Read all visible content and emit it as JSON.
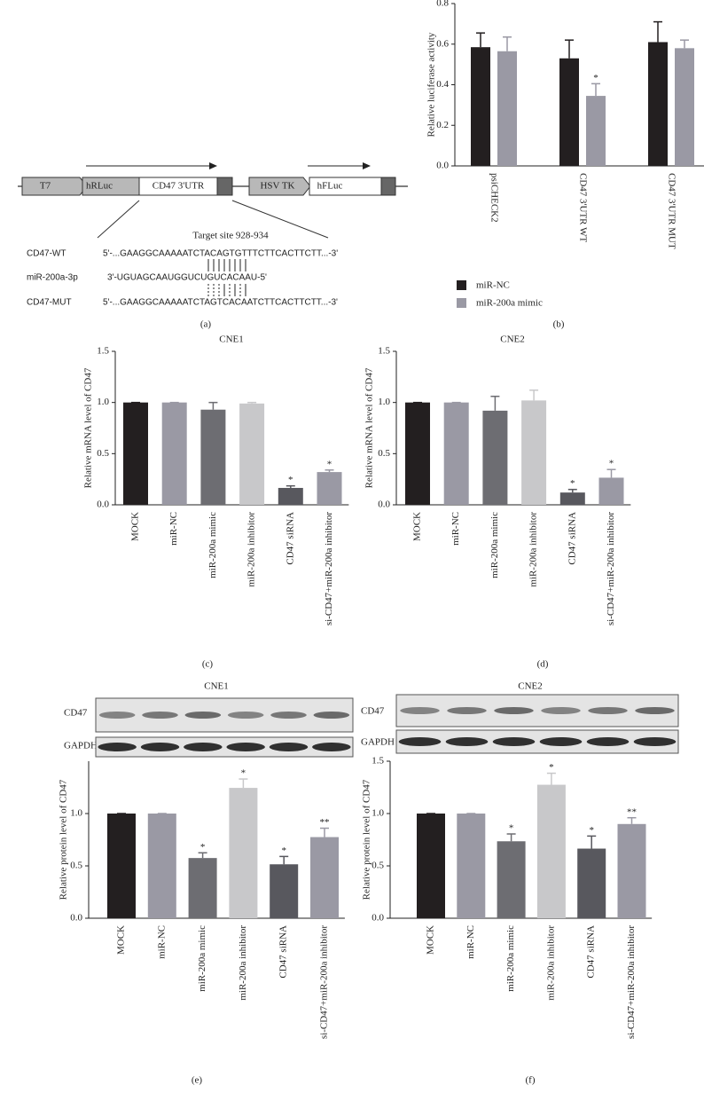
{
  "diagram": {
    "elements": [
      "T7",
      "hRLuc",
      "CD47 3'UTR",
      "HSV TK",
      "hFLuc"
    ],
    "target_site": "Target site 928-934",
    "rows": [
      {
        "label": "CD47-WT",
        "sequence": "5'-...GAAGGCAAAAATCTACAGTGTTTCTTCACTTCTT...-3'"
      },
      {
        "label": "miR-200a-3p",
        "sequence": "3'-UGUAGCAAUGGUCUGUCACAAU-5'"
      },
      {
        "label": "CD47-MUT",
        "sequence": "5'-...GAAGGCAAAAATCTAGTCACAATCTTCACTTCTT...-3'"
      }
    ]
  },
  "panel_labels": [
    "(a)",
    "(b)",
    "(c)",
    "(d)",
    "(e)",
    "(f)"
  ],
  "blots": [
    {
      "title": "CNE1",
      "lanes": [
        "CD47",
        "GAPDH"
      ]
    },
    {
      "title": "CNE2",
      "lanes": [
        "CD47",
        "GAPDH"
      ]
    }
  ],
  "chart_data": [
    {
      "type": "bar",
      "ylabel": "Relative luciferase activity",
      "categories": [
        "psiCHECK2",
        "CD47 3'UTR WT",
        "CD47 3'UTR MUT"
      ],
      "series": [
        {
          "name": "miR-NC",
          "color": "#231f20",
          "values": [
            0.585,
            0.53,
            0.61
          ],
          "errors": [
            0.07,
            0.09,
            0.1
          ]
        },
        {
          "name": "miR-200a mimic",
          "color": "#9a99a4",
          "values": [
            0.565,
            0.345,
            0.58
          ],
          "errors": [
            0.07,
            0.06,
            0.04
          ],
          "annotations": [
            {
              "index": 1,
              "text": "*"
            }
          ]
        }
      ],
      "ylim": [
        0,
        0.8
      ],
      "yticks": [
        {
          "value": 0,
          "label": "0.0"
        },
        0.2,
        0.4,
        0.6,
        0.8
      ]
    },
    {
      "type": "bar",
      "title": "CNE1",
      "ylabel": "Relative mRNA level of CD47",
      "categories": [
        "MOCK",
        "miR-NC",
        "miR-200a mimic",
        "miR-200a inhibitor",
        "CD47 siRNA",
        "si-CD47+miR-200a inhibitor"
      ],
      "values": [
        1.0,
        1.0,
        0.93,
        0.99,
        0.165,
        0.32
      ],
      "errors": [
        0,
        0,
        0.07,
        0.01,
        0.02,
        0.02
      ],
      "colors": [
        "#231f20",
        "#9a99a4",
        "#6d6d72",
        "#c8c8ca",
        "#58585e",
        "#9a99a4"
      ],
      "annotations": [
        {
          "index": 4,
          "text": "*"
        },
        {
          "index": 5,
          "text": "*"
        }
      ],
      "ylim": [
        0,
        1.5
      ],
      "yticks": [
        {
          "value": 0,
          "label": "0.0"
        },
        0.5,
        {
          "value": 1,
          "label": "1.0"
        },
        1.5
      ]
    },
    {
      "type": "bar",
      "title": "CNE2",
      "ylabel": "Relative mRNA level of CD47",
      "categories": [
        "MOCK",
        "miR-NC",
        "miR-200a mimic",
        "miR-200a inhibitor",
        "CD47 siRNA",
        "si-CD47+miR-200a inhibitor"
      ],
      "values": [
        1.0,
        1.0,
        0.92,
        1.02,
        0.12,
        0.265
      ],
      "errors": [
        0,
        0,
        0.14,
        0.1,
        0.03,
        0.08
      ],
      "colors": [
        "#231f20",
        "#9a99a4",
        "#6d6d72",
        "#c8c8ca",
        "#58585e",
        "#9a99a4"
      ],
      "annotations": [
        {
          "index": 4,
          "text": "*"
        },
        {
          "index": 5,
          "text": "*"
        }
      ],
      "ylim": [
        0,
        1.5
      ],
      "yticks": [
        {
          "value": 0,
          "label": "0.0"
        },
        0.5,
        {
          "value": 1,
          "label": "1.0"
        },
        1.5
      ]
    },
    {
      "type": "bar",
      "ylabel": "Relative protein level of CD47",
      "categories": [
        "MOCK",
        "miR-NC",
        "miR-200a mimic",
        "miR-200a inhibitor",
        "CD47 siRNA",
        "si-CD47+miR-200a inhibitor"
      ],
      "values": [
        1.0,
        1.0,
        0.575,
        1.245,
        0.515,
        0.775
      ],
      "errors": [
        0,
        0,
        0.05,
        0.085,
        0.075,
        0.085
      ],
      "colors": [
        "#231f20",
        "#9a99a4",
        "#6d6d72",
        "#c8c8ca",
        "#58585e",
        "#9a99a4"
      ],
      "annotations": [
        {
          "index": 2,
          "text": "*"
        },
        {
          "index": 3,
          "text": "*"
        },
        {
          "index": 4,
          "text": "*"
        },
        {
          "index": 5,
          "text": "**"
        }
      ],
      "ylim": [
        0,
        1.5
      ],
      "yticks": [
        {
          "value": 0,
          "label": "0.0"
        },
        0.5,
        {
          "value": 1,
          "label": "1.0"
        }
      ]
    },
    {
      "type": "bar",
      "ylabel": "Relative protein level of CD47",
      "categories": [
        "MOCK",
        "miR-NC",
        "miR-200a mimic",
        "miR-200a inhibitor",
        "CD47 siRNA",
        "si-CD47+miR-200a inhibitor"
      ],
      "values": [
        1.0,
        1.0,
        0.735,
        1.275,
        0.665,
        0.9
      ],
      "errors": [
        0,
        0,
        0.07,
        0.11,
        0.12,
        0.06
      ],
      "colors": [
        "#231f20",
        "#9a99a4",
        "#6d6d72",
        "#c8c8ca",
        "#58585e",
        "#9a99a4"
      ],
      "annotations": [
        {
          "index": 2,
          "text": "*"
        },
        {
          "index": 3,
          "text": "*"
        },
        {
          "index": 4,
          "text": "*"
        },
        {
          "index": 5,
          "text": "**"
        }
      ],
      "ylim": [
        0,
        1.5
      ],
      "yticks": [
        {
          "value": 0,
          "label": "0.0"
        },
        0.5,
        {
          "value": 1,
          "label": "1.0"
        },
        1.5
      ]
    }
  ]
}
